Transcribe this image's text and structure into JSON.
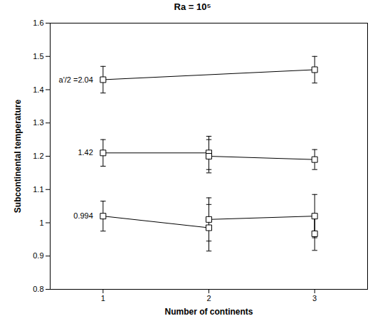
{
  "chart_data": {
    "type": "line",
    "title": "Ra = 10⁵",
    "x_label": "Number of continents",
    "y_label": "Subcontinental temperature",
    "xlim": [
      0.5,
      3.5
    ],
    "xticks": [
      1,
      2,
      3
    ],
    "ylim": [
      0.8,
      1.6
    ],
    "yticks": [
      0.8,
      0.9,
      1,
      1.1,
      1.2,
      1.3,
      1.4,
      1.5,
      1.6
    ],
    "color": "#000000",
    "marker": "square",
    "line_style": "solid",
    "series": [
      {
        "label": "a'/2 =2.04",
        "x": [
          1,
          3
        ],
        "values": [
          1.43,
          1.46
        ],
        "errors": [
          0.04,
          0.04
        ]
      },
      {
        "label": "1.42",
        "x": [
          1,
          2,
          2,
          3
        ],
        "values": [
          1.21,
          1.21,
          1.2,
          1.19
        ],
        "errors": [
          0.04,
          0.05,
          0.05,
          0.03
        ]
      },
      {
        "label": "0.994",
        "x": [
          1,
          2,
          2,
          3,
          3
        ],
        "values": [
          1.02,
          0.985,
          1.01,
          1.02,
          0.967
        ],
        "errors": [
          0.045,
          0.07,
          0.065,
          0.065,
          0.05
        ]
      }
    ]
  }
}
